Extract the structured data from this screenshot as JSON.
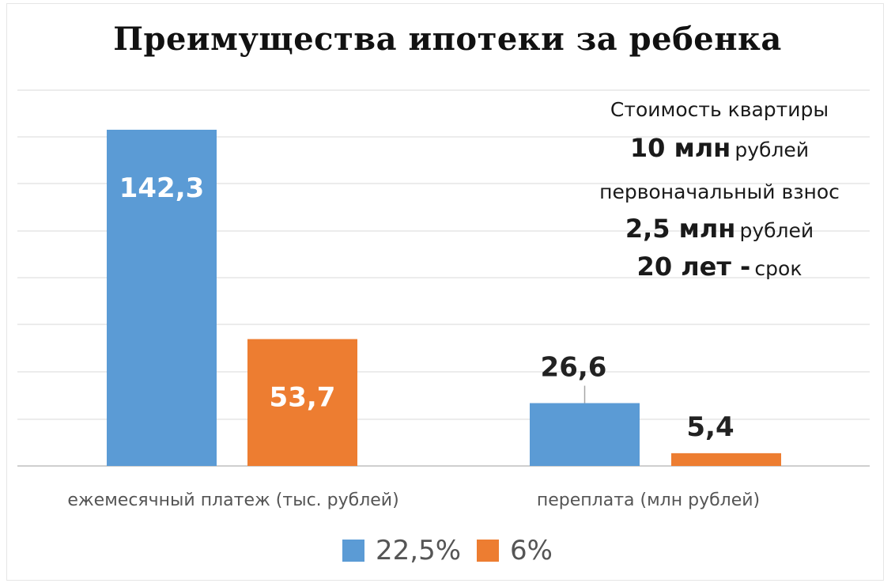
{
  "chart_data": {
    "type": "bar",
    "title": "Преимущества ипотеки за ребенка",
    "categories": [
      "ежемесячный платеж (тыс. рублей)",
      "переплата (млн рублей)"
    ],
    "series": [
      {
        "name": "22,5%",
        "color": "#5b9bd5",
        "values": [
          142.3,
          26.6
        ],
        "labels": [
          "142,3",
          "26,6"
        ]
      },
      {
        "name": "6%",
        "color": "#ed7d31",
        "values": [
          53.7,
          5.4
        ],
        "labels": [
          "53,7",
          "5,4"
        ]
      }
    ],
    "ylim": [
      0,
      142.3
    ],
    "grid": true,
    "legend": "bottom-center",
    "annotation": {
      "line1": "Стоимость квартиры",
      "line2_big": "10 млн",
      "line2_small": "рублей",
      "line3": "первоначальный взнос",
      "line4_big": "2,5 млн",
      "line4_small": "рублей",
      "line5_big": "20 лет -",
      "line5_small": "срок"
    }
  }
}
